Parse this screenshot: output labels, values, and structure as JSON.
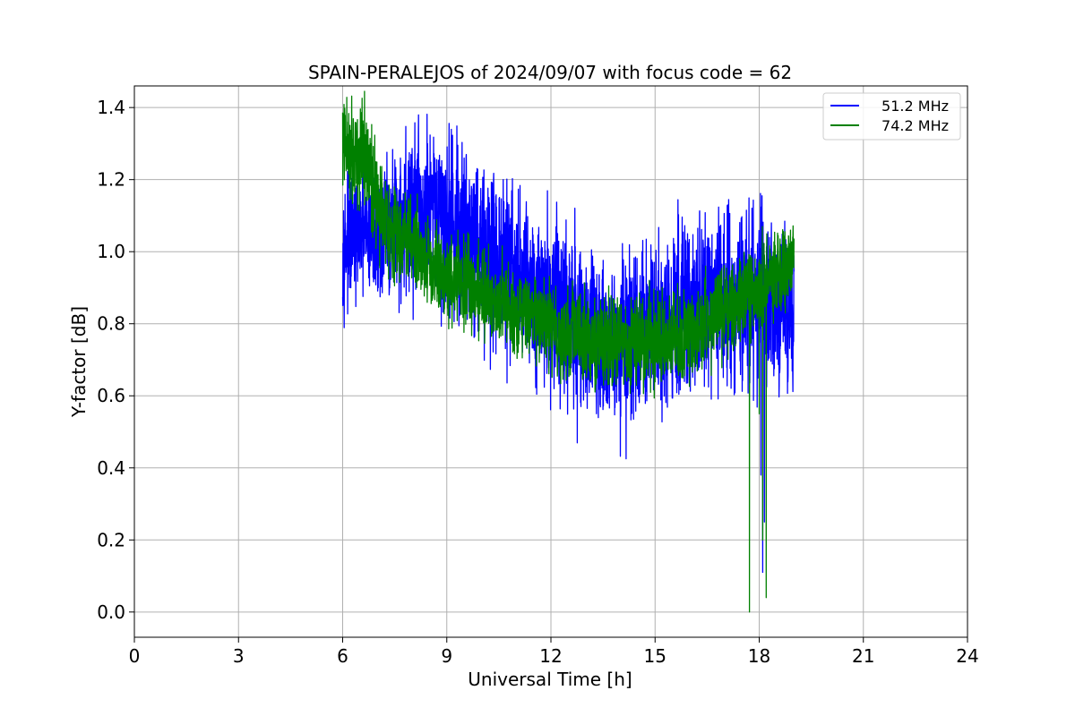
{
  "chart_data": {
    "type": "line",
    "title": "SPAIN-PERALEJOS of 2024/09/07 with focus code = 62",
    "xlabel": "Universal Time [h]",
    "ylabel": "Y-factor [dB]",
    "xlim": [
      0,
      24
    ],
    "ylim": [
      -0.07,
      1.46
    ],
    "xticks": [
      0,
      3,
      6,
      9,
      12,
      15,
      18,
      21,
      24
    ],
    "yticks": [
      0.0,
      0.2,
      0.4,
      0.6,
      0.8,
      1.0,
      1.2,
      1.4
    ],
    "grid": true,
    "legend_position": "top-right",
    "series": [
      {
        "name": "51.2 MHz",
        "color": "#0000ff",
        "x": [
          6.0,
          6.5,
          7.0,
          7.5,
          8.0,
          8.5,
          9.0,
          9.5,
          10.0,
          10.5,
          11.0,
          11.5,
          12.0,
          12.5,
          13.0,
          13.5,
          14.0,
          14.5,
          15.0,
          15.5,
          16.0,
          16.5,
          17.0,
          17.5,
          18.0,
          18.2,
          18.5,
          19.0
        ],
        "y": [
          1.02,
          1.05,
          1.04,
          1.07,
          1.1,
          1.09,
          1.08,
          1.06,
          1.02,
          0.98,
          0.94,
          0.9,
          0.86,
          0.82,
          0.78,
          0.76,
          0.75,
          0.77,
          0.8,
          0.82,
          0.83,
          0.84,
          0.85,
          0.87,
          0.88,
          0.85,
          0.84,
          0.86
        ],
        "noise": [
          0.08,
          0.08,
          0.09,
          0.1,
          0.12,
          0.12,
          0.12,
          0.12,
          0.12,
          0.12,
          0.12,
          0.12,
          0.12,
          0.12,
          0.12,
          0.12,
          0.12,
          0.12,
          0.12,
          0.12,
          0.12,
          0.12,
          0.12,
          0.12,
          0.12,
          0.12,
          0.12,
          0.12
        ],
        "dips": [
          [
            18.05,
            0.38
          ],
          [
            18.1,
            0.11
          ],
          [
            18.15,
            0.25
          ]
        ]
      },
      {
        "name": "74.2 MHz",
        "color": "#008000",
        "x": [
          6.0,
          6.3,
          6.7,
          7.0,
          7.5,
          8.0,
          8.5,
          9.0,
          9.5,
          10.0,
          10.5,
          11.0,
          11.5,
          12.0,
          12.5,
          13.0,
          13.5,
          14.0,
          14.5,
          15.0,
          15.5,
          16.0,
          16.5,
          17.0,
          17.5,
          18.0,
          18.5,
          19.0
        ],
        "y": [
          1.3,
          1.28,
          1.25,
          1.15,
          1.05,
          1.03,
          0.97,
          0.93,
          0.91,
          0.89,
          0.86,
          0.83,
          0.81,
          0.79,
          0.77,
          0.76,
          0.75,
          0.75,
          0.75,
          0.75,
          0.76,
          0.77,
          0.8,
          0.82,
          0.86,
          0.9,
          0.94,
          0.98
        ],
        "noise": [
          0.06,
          0.07,
          0.07,
          0.07,
          0.06,
          0.06,
          0.06,
          0.06,
          0.06,
          0.06,
          0.06,
          0.06,
          0.06,
          0.06,
          0.06,
          0.06,
          0.06,
          0.06,
          0.06,
          0.06,
          0.06,
          0.06,
          0.06,
          0.06,
          0.06,
          0.06,
          0.06,
          0.06
        ],
        "dips": [
          [
            17.72,
            0.0
          ],
          [
            18.0,
            0.55
          ],
          [
            18.1,
            0.2
          ],
          [
            18.2,
            0.04
          ]
        ]
      }
    ]
  }
}
